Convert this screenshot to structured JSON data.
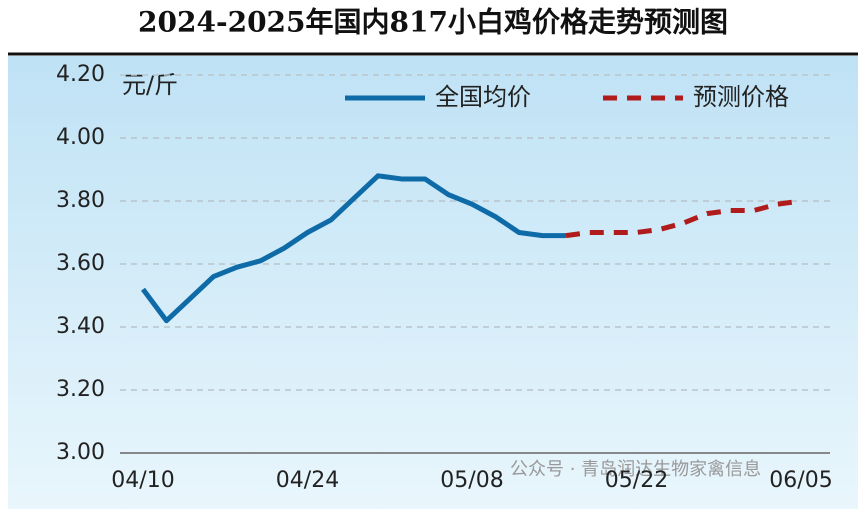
{
  "chart_data": {
    "type": "line",
    "title": "2024-2025年国内817小白鸡价格走势预测图",
    "y_unit": "元/斤",
    "annotation": "公众号 · 青岛润达生物家禽信息",
    "categories": [
      "04/10",
      null,
      null,
      null,
      null,
      null,
      null,
      "04/24",
      null,
      null,
      null,
      null,
      null,
      null,
      "05/08",
      null,
      null,
      null,
      null,
      null,
      null,
      "05/22",
      null,
      null,
      null,
      null,
      null,
      null,
      "06/05"
    ],
    "series": [
      {
        "name": "全国均价",
        "color": "#0e6ba8",
        "style": "solid",
        "values": [
          3.52,
          3.42,
          3.49,
          3.56,
          3.59,
          3.61,
          3.65,
          3.7,
          3.74,
          3.81,
          3.88,
          3.87,
          3.87,
          3.82,
          3.79,
          3.75,
          3.7,
          3.69,
          3.69,
          null,
          null,
          null,
          null,
          null,
          null,
          null,
          null,
          null,
          null
        ]
      },
      {
        "name": "预测价格",
        "color": "#b01c1c",
        "style": "dashed",
        "values": [
          null,
          null,
          null,
          null,
          null,
          null,
          null,
          null,
          null,
          null,
          null,
          null,
          null,
          null,
          null,
          null,
          null,
          null,
          3.69,
          3.7,
          3.7,
          3.7,
          3.71,
          3.73,
          3.76,
          3.77,
          3.77,
          3.79,
          3.8
        ]
      }
    ],
    "ylim": [
      3.0,
      4.2
    ],
    "yticks": [
      {
        "value": 3.0,
        "label": "3.00"
      },
      {
        "value": 3.2,
        "label": "3.20"
      },
      {
        "value": 3.4,
        "label": "3.40"
      },
      {
        "value": 3.6,
        "label": "3.60"
      },
      {
        "value": 3.8,
        "label": "3.80"
      },
      {
        "value": 4.0,
        "label": "4.00"
      },
      {
        "value": 4.2,
        "label": "4.20"
      }
    ],
    "grid": true,
    "legend": "top-right"
  }
}
